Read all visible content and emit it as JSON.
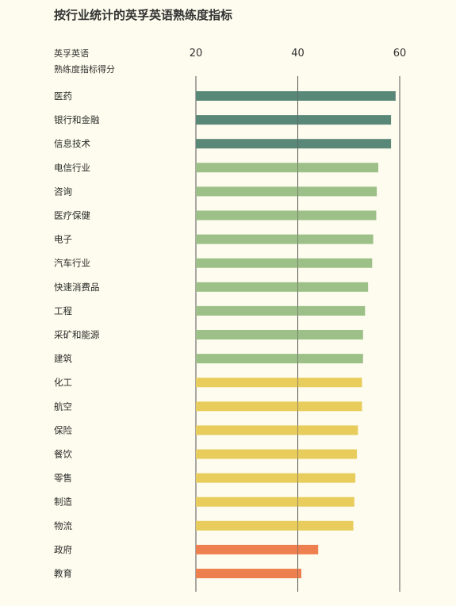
{
  "title": "按行业统计的英孚英语熟练度指标",
  "score_label": [
    "英孚英语",
    "熟练度指标得分"
  ],
  "chart_data": {
    "type": "bar",
    "orientation": "horizontal",
    "title": "按行业统计的英孚英语熟练度指标",
    "xlabel": "英孚英语熟练度指标得分",
    "xlim": [
      20,
      60
    ],
    "xticks": [
      20,
      40,
      60
    ],
    "grid": true,
    "categories": [
      "医药",
      "银行和金融",
      "信息技术",
      "电信行业",
      "咨询",
      "医疗保健",
      "电子",
      "汽车行业",
      "快速消费品",
      "工程",
      "采矿和能源",
      "建筑",
      "化工",
      "航空",
      "保险",
      "餐饮",
      "零售",
      "制造",
      "物流",
      "政府",
      "教育"
    ],
    "values": [
      59.2,
      58.3,
      58.3,
      55.8,
      55.5,
      55.4,
      54.8,
      54.6,
      53.8,
      53.2,
      52.8,
      52.8,
      52.6,
      52.6,
      51.8,
      51.6,
      51.3,
      51.1,
      50.9,
      44.0,
      40.7
    ],
    "colors": [
      "#5a8878",
      "#5a8878",
      "#5a8878",
      "#9dbf88",
      "#9dbf88",
      "#9dbf88",
      "#9dbf88",
      "#9dbf88",
      "#9dbf88",
      "#9dbf88",
      "#9dbf88",
      "#9dbf88",
      "#e8cc5c",
      "#e8cc5c",
      "#e8cc5c",
      "#e8cc5c",
      "#e8cc5c",
      "#e8cc5c",
      "#e8cc5c",
      "#ee8050",
      "#ee8050"
    ]
  }
}
